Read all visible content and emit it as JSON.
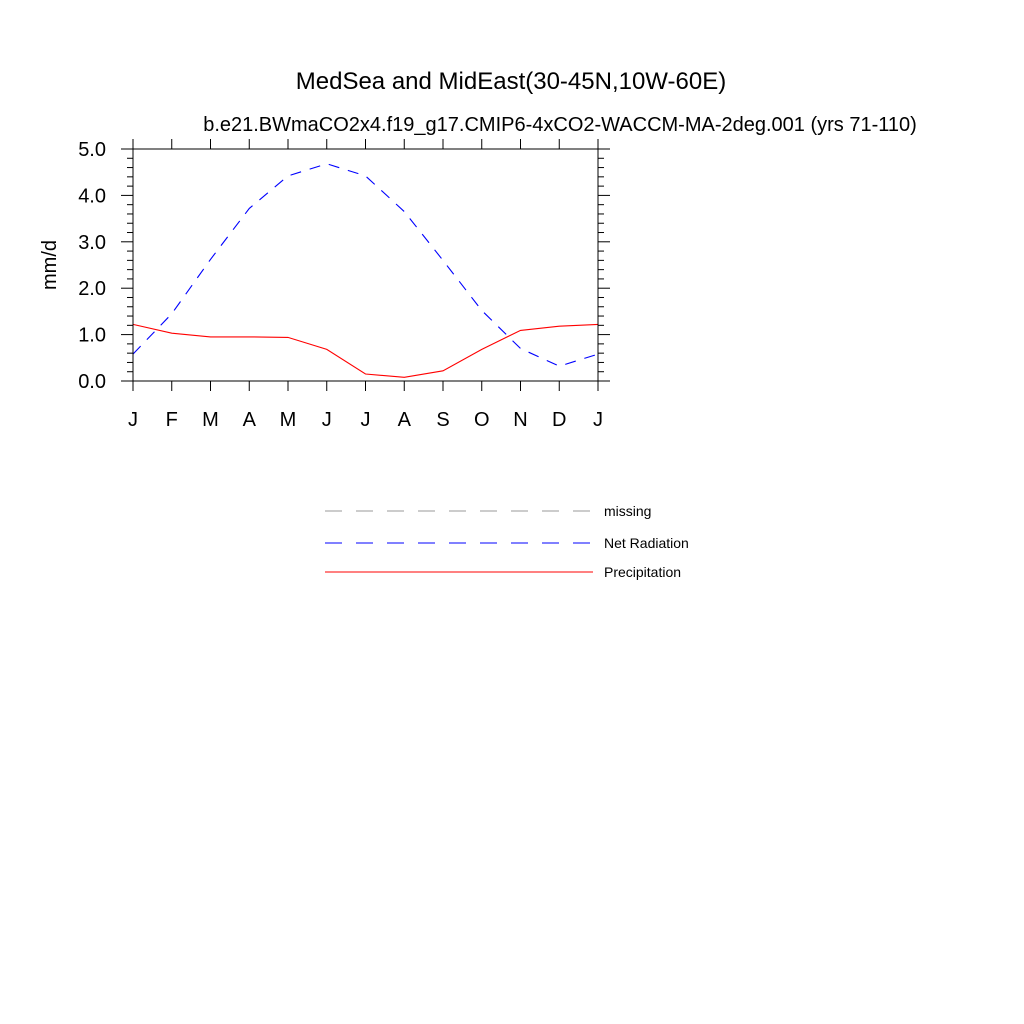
{
  "chart_data": {
    "type": "line",
    "title": "MedSea and MidEast(30-45N,10W-60E)",
    "subtitle": "b.e21.BWmaCO2x4.f19_g17.CMIP6-4xCO2-WACCM-MA-2deg.001 (yrs 71-110)",
    "ylabel": "mm/d",
    "xlabel": "",
    "ylim": [
      0.0,
      5.0
    ],
    "yticks": [
      "0.0",
      "1.0",
      "2.0",
      "3.0",
      "4.0",
      "5.0"
    ],
    "categories": [
      "J",
      "F",
      "M",
      "A",
      "M",
      "J",
      "J",
      "A",
      "S",
      "O",
      "N",
      "D",
      "J"
    ],
    "grid": false,
    "legend_position": "below",
    "series": [
      {
        "name": "Net Radiation",
        "color": "#0000ff",
        "style": "dashed",
        "values": [
          0.58,
          1.45,
          2.62,
          3.72,
          4.42,
          4.68,
          4.42,
          3.65,
          2.6,
          1.52,
          0.7,
          0.32,
          0.58
        ]
      },
      {
        "name": "Precipitation",
        "color": "#ff0000",
        "style": "solid",
        "values": [
          1.22,
          1.03,
          0.95,
          0.95,
          0.94,
          0.68,
          0.15,
          0.08,
          0.22,
          0.68,
          1.09,
          1.18,
          1.22
        ]
      }
    ],
    "legend": [
      {
        "label": "missing",
        "color": "#999999",
        "style": "dashed"
      },
      {
        "label": "Net Radiation",
        "color": "#0000ff",
        "style": "dashed"
      },
      {
        "label": "Precipitation",
        "color": "#ff0000",
        "style": "solid"
      }
    ]
  }
}
